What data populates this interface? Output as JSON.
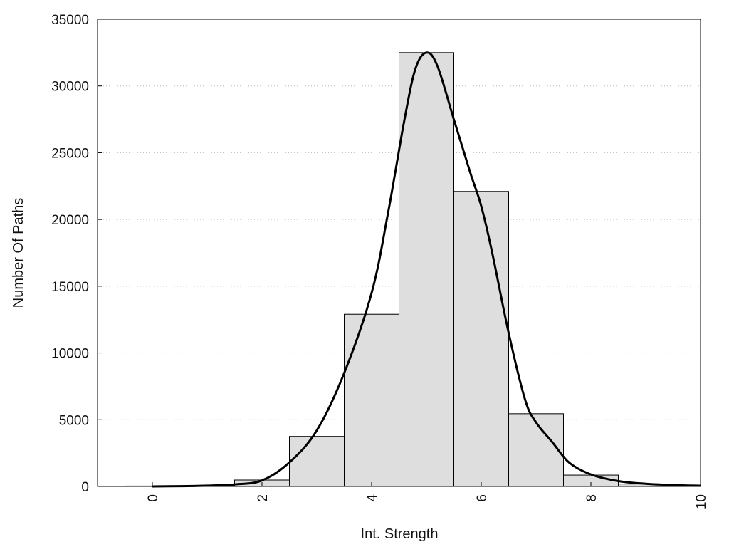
{
  "chart_data": {
    "type": "bar",
    "xlabel": "Int. Strength",
    "ylabel": "Number Of Paths",
    "xlim": [
      -1,
      10
    ],
    "ylim": [
      0,
      35000
    ],
    "x_ticks": [
      0,
      2,
      4,
      6,
      8,
      10
    ],
    "y_ticks": [
      0,
      5000,
      10000,
      15000,
      20000,
      25000,
      30000,
      35000
    ],
    "x_tick_labels": [
      "0",
      "2",
      "4",
      "6",
      "8",
      "10"
    ],
    "y_tick_labels": [
      "0",
      "5000",
      "10000",
      "15000",
      "20000",
      "25000",
      "30000",
      "35000"
    ],
    "grid": "horizontal dotted",
    "bar_color": "#dedede",
    "bar_edge_color": "#000000",
    "curve_color": "#000000",
    "bars": [
      {
        "x": 0,
        "value": 30
      },
      {
        "x": 1,
        "value": 60
      },
      {
        "x": 2,
        "value": 480
      },
      {
        "x": 3,
        "value": 3750
      },
      {
        "x": 4,
        "value": 12900
      },
      {
        "x": 5,
        "value": 32500
      },
      {
        "x": 6,
        "value": 22100
      },
      {
        "x": 7,
        "value": 5450
      },
      {
        "x": 8,
        "value": 850
      },
      {
        "x": 9,
        "value": 180
      },
      {
        "x": 10,
        "value": 60
      }
    ],
    "curve": {
      "x": [
        0,
        0.5,
        1,
        1.5,
        2,
        2.5,
        3,
        3.5,
        4,
        4.3,
        4.6,
        4.8,
        5,
        5.2,
        5.5,
        5.8,
        6,
        6.2,
        6.5,
        6.8,
        7,
        7.3,
        7.6,
        8,
        8.5,
        9,
        9.5,
        10
      ],
      "y": [
        0,
        20,
        60,
        150,
        450,
        1800,
        4200,
        8500,
        14500,
        20500,
        27500,
        31300,
        32500,
        31500,
        27500,
        23500,
        21000,
        17500,
        11500,
        6500,
        4800,
        3300,
        1800,
        900,
        400,
        200,
        100,
        50
      ]
    }
  }
}
